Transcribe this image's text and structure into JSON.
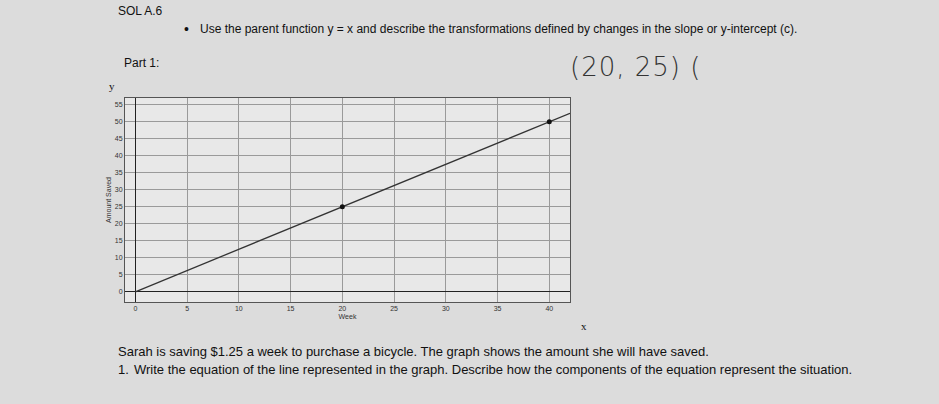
{
  "document": {
    "header": "SOL A.6",
    "bullet": "Use the parent function y = x and describe the transformations defined by changes in the slope or y-intercept (c).",
    "part": "Part 1:",
    "handwriting": "(20, 25) (",
    "problem": "Sarah is saving $1.25 a week to purchase a bicycle. The graph shows the amount she will have saved.",
    "question_number": "1.",
    "question": "Write the equation of the line represented in the graph. Describe how the components of the equation represent the situation."
  },
  "chart_data": {
    "type": "line",
    "x_label": "Week",
    "y_label": "Amount Saved",
    "annotations": [
      "y",
      "x"
    ],
    "series": [
      {
        "type": "line",
        "color": "#333333",
        "x": [
          0,
          42
        ],
        "values": [
          0,
          52.5
        ]
      },
      {
        "type": "scatter",
        "color": "#111111",
        "marker": "circle",
        "x": [
          20,
          40
        ],
        "values": [
          25,
          50
        ]
      }
    ],
    "xlim": [
      -1,
      42
    ],
    "xticks": [
      0,
      5,
      10,
      15,
      20,
      25,
      30,
      35,
      40
    ],
    "ylim": [
      -3,
      57
    ],
    "yticks": [
      0,
      5,
      10,
      15,
      20,
      25,
      30,
      35,
      40,
      45,
      50,
      55
    ],
    "grid": true
  }
}
